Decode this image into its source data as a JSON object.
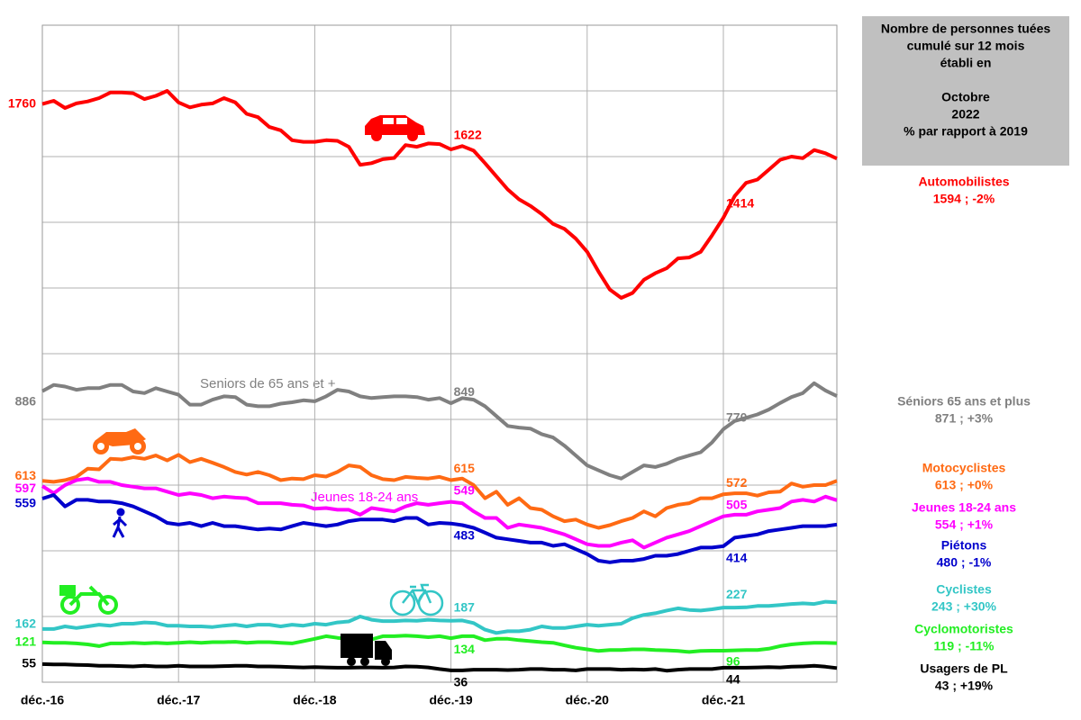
{
  "chart_data": {
    "type": "line",
    "categories": [
      "déc.-16",
      null,
      null,
      null,
      null,
      null,
      null,
      null,
      null,
      null,
      null,
      null,
      "déc.-17",
      null,
      null,
      null,
      null,
      null,
      null,
      null,
      null,
      null,
      null,
      null,
      "déc.-18",
      null,
      null,
      null,
      null,
      null,
      null,
      null,
      null,
      null,
      null,
      null,
      "déc.-19",
      null,
      null,
      null,
      null,
      null,
      null,
      null,
      null,
      null,
      null,
      null,
      "déc.-20",
      null,
      null,
      null,
      null,
      null,
      null,
      null,
      null,
      null,
      null,
      null,
      "déc.-21",
      null,
      null,
      null,
      null,
      null,
      null,
      null,
      null,
      null,
      null
    ],
    "ylim": [
      0,
      2000
    ],
    "yticks": [
      0,
      200,
      400,
      600,
      800,
      1000,
      1200,
      1400,
      1600,
      1800,
      2000
    ],
    "grid": true,
    "box_text_top": [
      "Nombre de personnes tuées",
      "cumulé sur 12 mois",
      "établi en"
    ],
    "box_text_bottom": [
      "Octobre",
      "2022",
      "% par rapport à 2019"
    ],
    "annotations": [
      "Seniors de 65 ans et +",
      "Jeunes 18-24 ans"
    ],
    "series": [
      {
        "name": "Automobilistes",
        "legend_label": "1594 ; -2%",
        "color": "#ff0000",
        "values": [
          1760,
          1770,
          1748,
          1762,
          1768,
          1778,
          1795,
          1795,
          1793,
          1775,
          1785,
          1800,
          1765,
          1750,
          1758,
          1762,
          1778,
          1765,
          1730,
          1720,
          1690,
          1680,
          1650,
          1645,
          1645,
          1650,
          1648,
          1630,
          1575,
          1580,
          1592,
          1596,
          1635,
          1630,
          1640,
          1638,
          1622,
          1632,
          1618,
          1580,
          1540,
          1500,
          1470,
          1450,
          1425,
          1395,
          1380,
          1350,
          1310,
          1250,
          1195,
          1170,
          1185,
          1225,
          1245,
          1260,
          1290,
          1293,
          1310,
          1360,
          1414,
          1480,
          1520,
          1530,
          1560,
          1590,
          1600,
          1595,
          1620,
          1610,
          1594
        ]
      },
      {
        "name": "Séniors 65 ans et plus",
        "legend_label": "871 ; +3%",
        "color": "#808080",
        "values": [
          886,
          905,
          900,
          890,
          895,
          895,
          905,
          905,
          885,
          880,
          895,
          885,
          875,
          845,
          845,
          860,
          870,
          868,
          845,
          840,
          840,
          848,
          852,
          858,
          855,
          870,
          890,
          885,
          870,
          865,
          868,
          870,
          870,
          868,
          860,
          865,
          849,
          865,
          860,
          840,
          810,
          780,
          775,
          772,
          755,
          745,
          720,
          690,
          660,
          645,
          630,
          620,
          640,
          660,
          655,
          665,
          680,
          690,
          700,
          730,
          770,
          795,
          805,
          815,
          830,
          850,
          868,
          880,
          910,
          888,
          871
        ]
      },
      {
        "name": "Motocyclistes",
        "legend_label": "613 ; +0%",
        "color": "#ff6a13",
        "values": [
          613,
          610,
          615,
          625,
          650,
          648,
          680,
          678,
          685,
          680,
          690,
          675,
          692,
          670,
          680,
          668,
          655,
          640,
          632,
          640,
          630,
          615,
          620,
          618,
          630,
          626,
          640,
          660,
          655,
          630,
          618,
          615,
          625,
          622,
          620,
          625,
          615,
          620,
          600,
          560,
          580,
          540,
          560,
          530,
          525,
          505,
          490,
          495,
          480,
          470,
          478,
          490,
          500,
          520,
          505,
          530,
          540,
          545,
          560,
          560,
          572,
          575,
          575,
          568,
          578,
          580,
          605,
          595,
          600,
          600,
          613
        ]
      },
      {
        "name": "Jeunes 18-24 ans",
        "legend_label": "554 ; +1%",
        "color": "#ff00ff",
        "values": [
          597,
          575,
          600,
          615,
          620,
          610,
          610,
          600,
          595,
          590,
          590,
          580,
          570,
          575,
          570,
          560,
          565,
          562,
          560,
          545,
          545,
          545,
          540,
          538,
          528,
          530,
          525,
          525,
          510,
          530,
          525,
          520,
          535,
          545,
          540,
          545,
          549,
          545,
          520,
          500,
          500,
          470,
          480,
          475,
          470,
          460,
          450,
          435,
          420,
          415,
          415,
          425,
          432,
          410,
          425,
          440,
          450,
          460,
          475,
          490,
          505,
          510,
          510,
          520,
          525,
          530,
          550,
          555,
          550,
          565,
          554
        ]
      },
      {
        "name": "Piétons",
        "legend_label": "480 ; -1%",
        "color": "#0000cc",
        "values": [
          559,
          570,
          535,
          555,
          555,
          550,
          550,
          545,
          535,
          520,
          505,
          485,
          480,
          485,
          475,
          485,
          475,
          475,
          470,
          465,
          468,
          465,
          475,
          485,
          480,
          475,
          480,
          490,
          495,
          495,
          495,
          490,
          500,
          500,
          480,
          485,
          483,
          478,
          470,
          455,
          440,
          435,
          430,
          425,
          425,
          415,
          420,
          405,
          390,
          370,
          365,
          370,
          370,
          375,
          385,
          385,
          390,
          400,
          410,
          410,
          414,
          440,
          445,
          450,
          460,
          465,
          470,
          475,
          475,
          475,
          480
        ]
      },
      {
        "name": "Cyclistes",
        "legend_label": "243 ; +30%",
        "color": "#33c6c6",
        "values": [
          162,
          162,
          170,
          165,
          170,
          175,
          172,
          178,
          178,
          182,
          180,
          172,
          172,
          170,
          170,
          168,
          172,
          175,
          170,
          175,
          175,
          170,
          175,
          172,
          178,
          175,
          182,
          185,
          200,
          190,
          186,
          186,
          188,
          187,
          190,
          188,
          187,
          188,
          180,
          160,
          150,
          155,
          155,
          160,
          170,
          165,
          165,
          170,
          175,
          172,
          175,
          178,
          195,
          205,
          210,
          218,
          225,
          220,
          218,
          222,
          227,
          227,
          228,
          232,
          232,
          235,
          238,
          240,
          238,
          245,
          243
        ]
      },
      {
        "name": "Cyclomotoristes",
        "legend_label": "119 ; -11%",
        "color": "#22ee22",
        "values": [
          121,
          120,
          120,
          118,
          115,
          110,
          118,
          118,
          120,
          118,
          120,
          118,
          120,
          122,
          120,
          122,
          122,
          123,
          120,
          122,
          122,
          120,
          118,
          125,
          132,
          140,
          135,
          132,
          130,
          130,
          140,
          140,
          142,
          140,
          137,
          140,
          134,
          140,
          140,
          128,
          132,
          132,
          128,
          125,
          122,
          120,
          112,
          105,
          100,
          95,
          98,
          98,
          100,
          100,
          98,
          97,
          95,
          92,
          95,
          96,
          96,
          97,
          98,
          98,
          102,
          110,
          115,
          118,
          120,
          120,
          119
        ]
      },
      {
        "name": "Usagers de PL",
        "legend_label": "43 ; +19%",
        "color": "#000000",
        "values": [
          55,
          54,
          54,
          53,
          52,
          50,
          50,
          49,
          48,
          50,
          48,
          48,
          50,
          48,
          48,
          48,
          49,
          50,
          50,
          48,
          48,
          47,
          46,
          45,
          46,
          45,
          44,
          44,
          45,
          45,
          44,
          45,
          48,
          47,
          45,
          40,
          36,
          36,
          38,
          38,
          38,
          37,
          38,
          40,
          40,
          38,
          38,
          36,
          40,
          40,
          40,
          38,
          39,
          38,
          40,
          35,
          38,
          40,
          40,
          40,
          44,
          44,
          44,
          45,
          46,
          45,
          47,
          48,
          50,
          47,
          43
        ]
      }
    ]
  }
}
